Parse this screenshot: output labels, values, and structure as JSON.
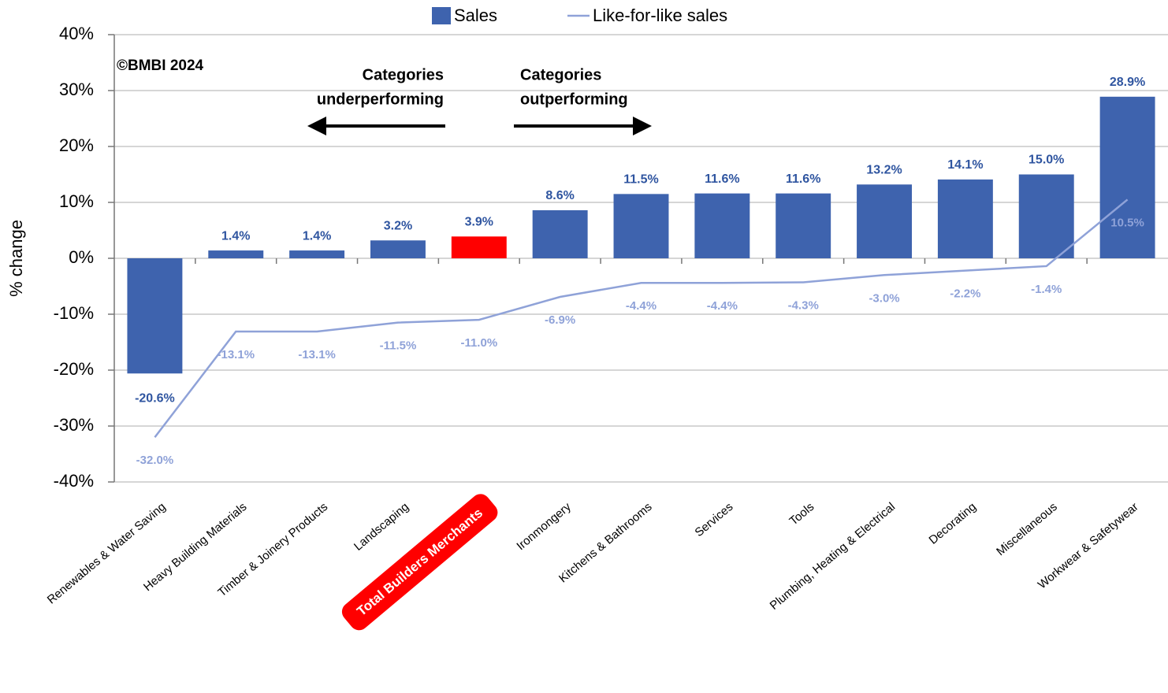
{
  "chart_data": {
    "type": "bar",
    "y_label": "% change",
    "annotations": [
      "©BMBI 2024",
      "Categories",
      "underperforming",
      "Categories",
      "outperforming"
    ],
    "categories": [
      "Renewables & Water Saving",
      "Heavy Building Materials",
      "Timber & Joinery Products",
      "Landscaping",
      "Total Builders Merchants",
      "Ironmongery",
      "Kitchens & Bathrooms",
      "Services",
      "Tools",
      "Plumbing, Heating & Electrical",
      "Decorating",
      "Miscellaneous",
      "Workwear & Safetywear"
    ],
    "series": [
      {
        "name": "Sales",
        "type": "bar",
        "color": "#3e63ae",
        "colors": [
          "#3e63ae",
          "#3e63ae",
          "#3e63ae",
          "#3e63ae",
          "#ff0000",
          "#3e63ae",
          "#3e63ae",
          "#3e63ae",
          "#3e63ae",
          "#3e63ae",
          "#3e63ae",
          "#3e63ae",
          "#3e63ae"
        ],
        "values": [
          -20.6,
          1.4,
          1.4,
          3.2,
          3.9,
          8.6,
          11.5,
          11.6,
          11.6,
          13.2,
          14.1,
          15.0,
          28.9
        ],
        "value_labels": [
          "-20.6%",
          "1.4%",
          "1.4%",
          "3.2%",
          "3.9%",
          "8.6%",
          "11.5%",
          "11.6%",
          "11.6%",
          "13.2%",
          "14.1%",
          "15.0%",
          "28.9%"
        ]
      },
      {
        "name": "Like-for-like sales",
        "type": "line",
        "color": "#8fa2d8",
        "values": [
          -32.0,
          -13.1,
          -13.1,
          -11.5,
          -11.0,
          -6.9,
          -4.4,
          -4.4,
          -4.3,
          -3.0,
          -2.2,
          -1.4,
          10.5
        ],
        "value_labels": [
          "-32.0%",
          "-13.1%",
          "-13.1%",
          "-11.5%",
          "-11.0%",
          "-6.9%",
          "-4.4%",
          "-4.4%",
          "-4.3%",
          "-3.0%",
          "-2.2%",
          "-1.4%",
          "10.5%"
        ]
      }
    ],
    "ylim": [
      -40,
      40
    ],
    "yticks": [
      {
        "value": -40,
        "label": "-40%"
      },
      {
        "value": -30,
        "label": "-30%"
      },
      {
        "value": -20,
        "label": "-20%"
      },
      {
        "value": -10,
        "label": "-10%"
      },
      {
        "value": 0,
        "label": "0%"
      },
      {
        "value": 10,
        "label": "10%"
      },
      {
        "value": 20,
        "label": "20%"
      },
      {
        "value": 30,
        "label": "30%"
      },
      {
        "value": 40,
        "label": "40%"
      }
    ],
    "grid": true,
    "legend": "top"
  }
}
